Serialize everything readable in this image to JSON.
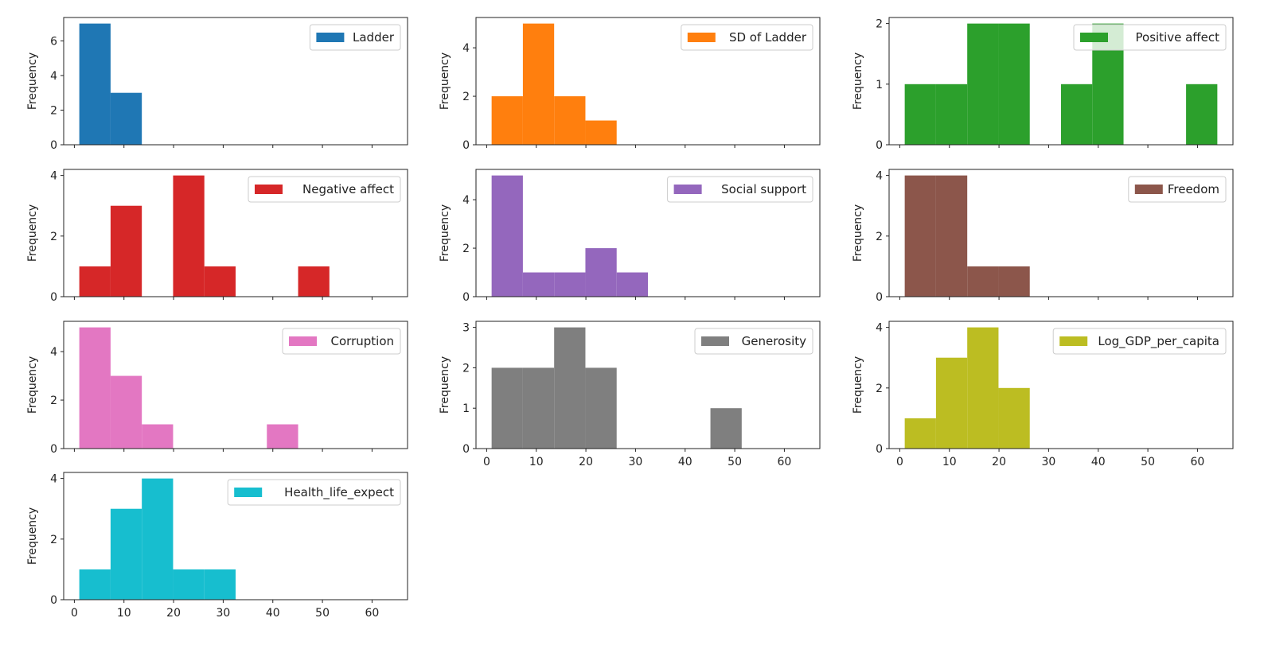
{
  "chart_data": {
    "type": "bar",
    "layout": "histogram subplots, 4 rows x 3 columns, shared x axis",
    "bin_edges": [
      1,
      7.3,
      13.6,
      19.9,
      26.2,
      32.5,
      38.8,
      45.1,
      51.4,
      57.7,
      64
    ],
    "xlim": [
      -2.15,
      67.15
    ],
    "xticks": [
      0,
      10,
      20,
      30,
      40,
      50,
      60
    ],
    "ylabel": "Frequency",
    "grid": false,
    "legend_placement": "top-right",
    "panels": [
      {
        "name": "Ladder",
        "color": "#1f77b4",
        "counts": [
          7,
          3,
          0,
          0,
          0,
          0,
          0,
          0,
          0,
          0
        ],
        "ylim": [
          0,
          7.35
        ],
        "yticks": [
          0,
          2,
          4,
          6
        ]
      },
      {
        "name": "SD of Ladder",
        "color": "#ff7f0e",
        "counts": [
          2,
          5,
          2,
          1,
          0,
          0,
          0,
          0,
          0,
          0
        ],
        "ylim": [
          0,
          5.25
        ],
        "yticks": [
          0,
          2,
          4
        ]
      },
      {
        "name": "Positive affect",
        "color": "#2ca02c",
        "counts": [
          1,
          1,
          2,
          2,
          0,
          1,
          2,
          0,
          0,
          1
        ],
        "ylim": [
          0,
          2.1
        ],
        "yticks": [
          0,
          1,
          2
        ]
      },
      {
        "name": "Negative affect",
        "color": "#d62728",
        "counts": [
          1,
          3,
          0,
          4,
          1,
          0,
          0,
          1,
          0,
          0
        ],
        "ylim": [
          0,
          4.2
        ],
        "yticks": [
          0,
          2,
          4
        ]
      },
      {
        "name": "Social support",
        "color": "#9467bd",
        "counts": [
          5,
          1,
          1,
          2,
          1,
          0,
          0,
          0,
          0,
          0
        ],
        "ylim": [
          0,
          5.25
        ],
        "yticks": [
          0,
          2,
          4
        ]
      },
      {
        "name": "Freedom",
        "color": "#8c564b",
        "counts": [
          4,
          4,
          1,
          1,
          0,
          0,
          0,
          0,
          0,
          0
        ],
        "ylim": [
          0,
          4.2
        ],
        "yticks": [
          0,
          2,
          4
        ]
      },
      {
        "name": "Corruption",
        "color": "#e377c2",
        "counts": [
          5,
          3,
          1,
          0,
          0,
          0,
          1,
          0,
          0,
          0
        ],
        "ylim": [
          0,
          5.25
        ],
        "yticks": [
          0,
          2,
          4
        ]
      },
      {
        "name": "Generosity",
        "color": "#7f7f7f",
        "counts": [
          2,
          2,
          3,
          2,
          0,
          0,
          0,
          1,
          0,
          0
        ],
        "ylim": [
          0,
          3.15
        ],
        "yticks": [
          0,
          1,
          2,
          3
        ]
      },
      {
        "name": "Log_GDP_per_capita",
        "color": "#bcbd22",
        "counts": [
          1,
          3,
          4,
          2,
          0,
          0,
          0,
          0,
          0,
          0
        ],
        "ylim": [
          0,
          4.2
        ],
        "yticks": [
          0,
          2,
          4
        ]
      },
      {
        "name": "Health_life_expect",
        "color": "#17becf",
        "counts": [
          1,
          3,
          4,
          1,
          1,
          0,
          0,
          0,
          0,
          0
        ],
        "ylim": [
          0,
          4.2
        ],
        "yticks": [
          0,
          2,
          4
        ]
      }
    ]
  }
}
